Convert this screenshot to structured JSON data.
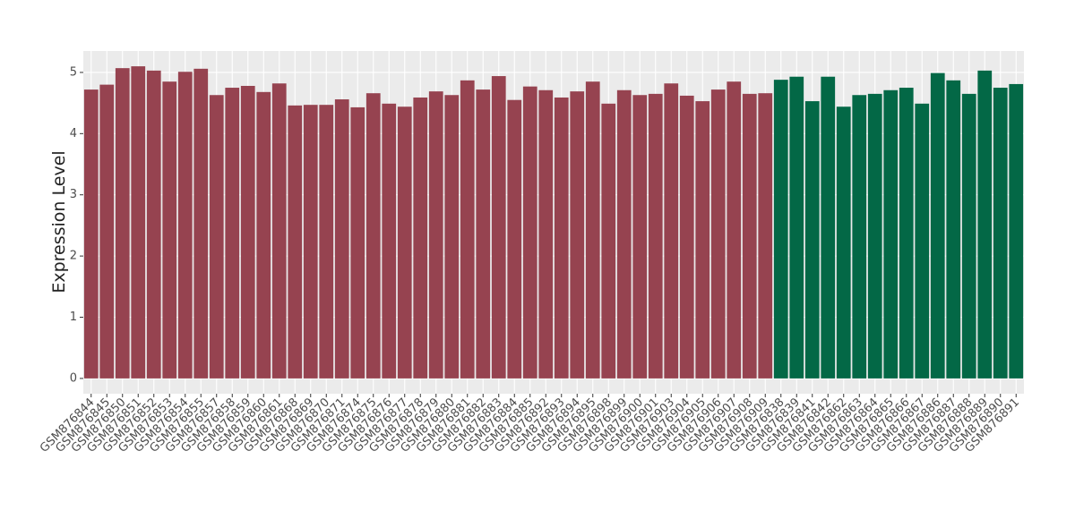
{
  "chart_data": {
    "type": "bar",
    "y_label": "Expression Level",
    "categories": [
      "GSM876844",
      "GSM876845",
      "GSM876850",
      "GSM876851",
      "GSM876852",
      "GSM876853",
      "GSM876854",
      "GSM876855",
      "GSM876857",
      "GSM876858",
      "GSM876859",
      "GSM876860",
      "GSM876861",
      "GSM876868",
      "GSM876869",
      "GSM876870",
      "GSM876871",
      "GSM876874",
      "GSM876875",
      "GSM876876",
      "GSM876877",
      "GSM876878",
      "GSM876879",
      "GSM876880",
      "GSM876881",
      "GSM876882",
      "GSM876883",
      "GSM876884",
      "GSM876885",
      "GSM876892",
      "GSM876893",
      "GSM876894",
      "GSM876895",
      "GSM876898",
      "GSM876899",
      "GSM876900",
      "GSM876901",
      "GSM876903",
      "GSM876904",
      "GSM876905",
      "GSM876906",
      "GSM876907",
      "GSM876908",
      "GSM876909",
      "GSM876838",
      "GSM876839",
      "GSM876841",
      "GSM876842",
      "GSM876862",
      "GSM876863",
      "GSM876864",
      "GSM876865",
      "GSM876866",
      "GSM876867",
      "GSM876886",
      "GSM876887",
      "GSM876888",
      "GSM876889",
      "GSM876890",
      "GSM876891"
    ],
    "series": [
      {
        "color": "#964350",
        "values": [
          4.72,
          4.8,
          5.07,
          5.1,
          5.03,
          4.85,
          5.01,
          5.06,
          4.63,
          4.75,
          4.78,
          4.68,
          4.82,
          4.46,
          4.47,
          4.47,
          4.56,
          4.43,
          4.66,
          4.49,
          4.44,
          4.59,
          4.69,
          4.63,
          4.87,
          4.72,
          4.94,
          4.55,
          4.77,
          4.71,
          4.59,
          4.69,
          4.85,
          4.49,
          4.71,
          4.63,
          4.65,
          4.82,
          4.62,
          4.53,
          4.72,
          4.85,
          4.65,
          4.66,
          null,
          null,
          null,
          null,
          null,
          null,
          null,
          null,
          null,
          null,
          null,
          null,
          null,
          null,
          null,
          null
        ]
      },
      {
        "color": "#036846",
        "values": [
          null,
          null,
          null,
          null,
          null,
          null,
          null,
          null,
          null,
          null,
          null,
          null,
          null,
          null,
          null,
          null,
          null,
          null,
          null,
          null,
          null,
          null,
          null,
          null,
          null,
          null,
          null,
          null,
          null,
          null,
          null,
          null,
          null,
          null,
          null,
          null,
          null,
          null,
          null,
          null,
          null,
          null,
          null,
          null,
          4.88,
          4.93,
          4.53,
          4.93,
          4.44,
          4.63,
          4.65,
          4.71,
          4.75,
          4.49,
          4.99,
          4.87,
          4.65,
          5.03,
          4.75,
          4.81
        ]
      }
    ],
    "ylim": [
      -0.25,
      5.35
    ],
    "yticks": [
      0,
      1,
      2,
      3,
      4,
      5
    ],
    "grid": true
  }
}
